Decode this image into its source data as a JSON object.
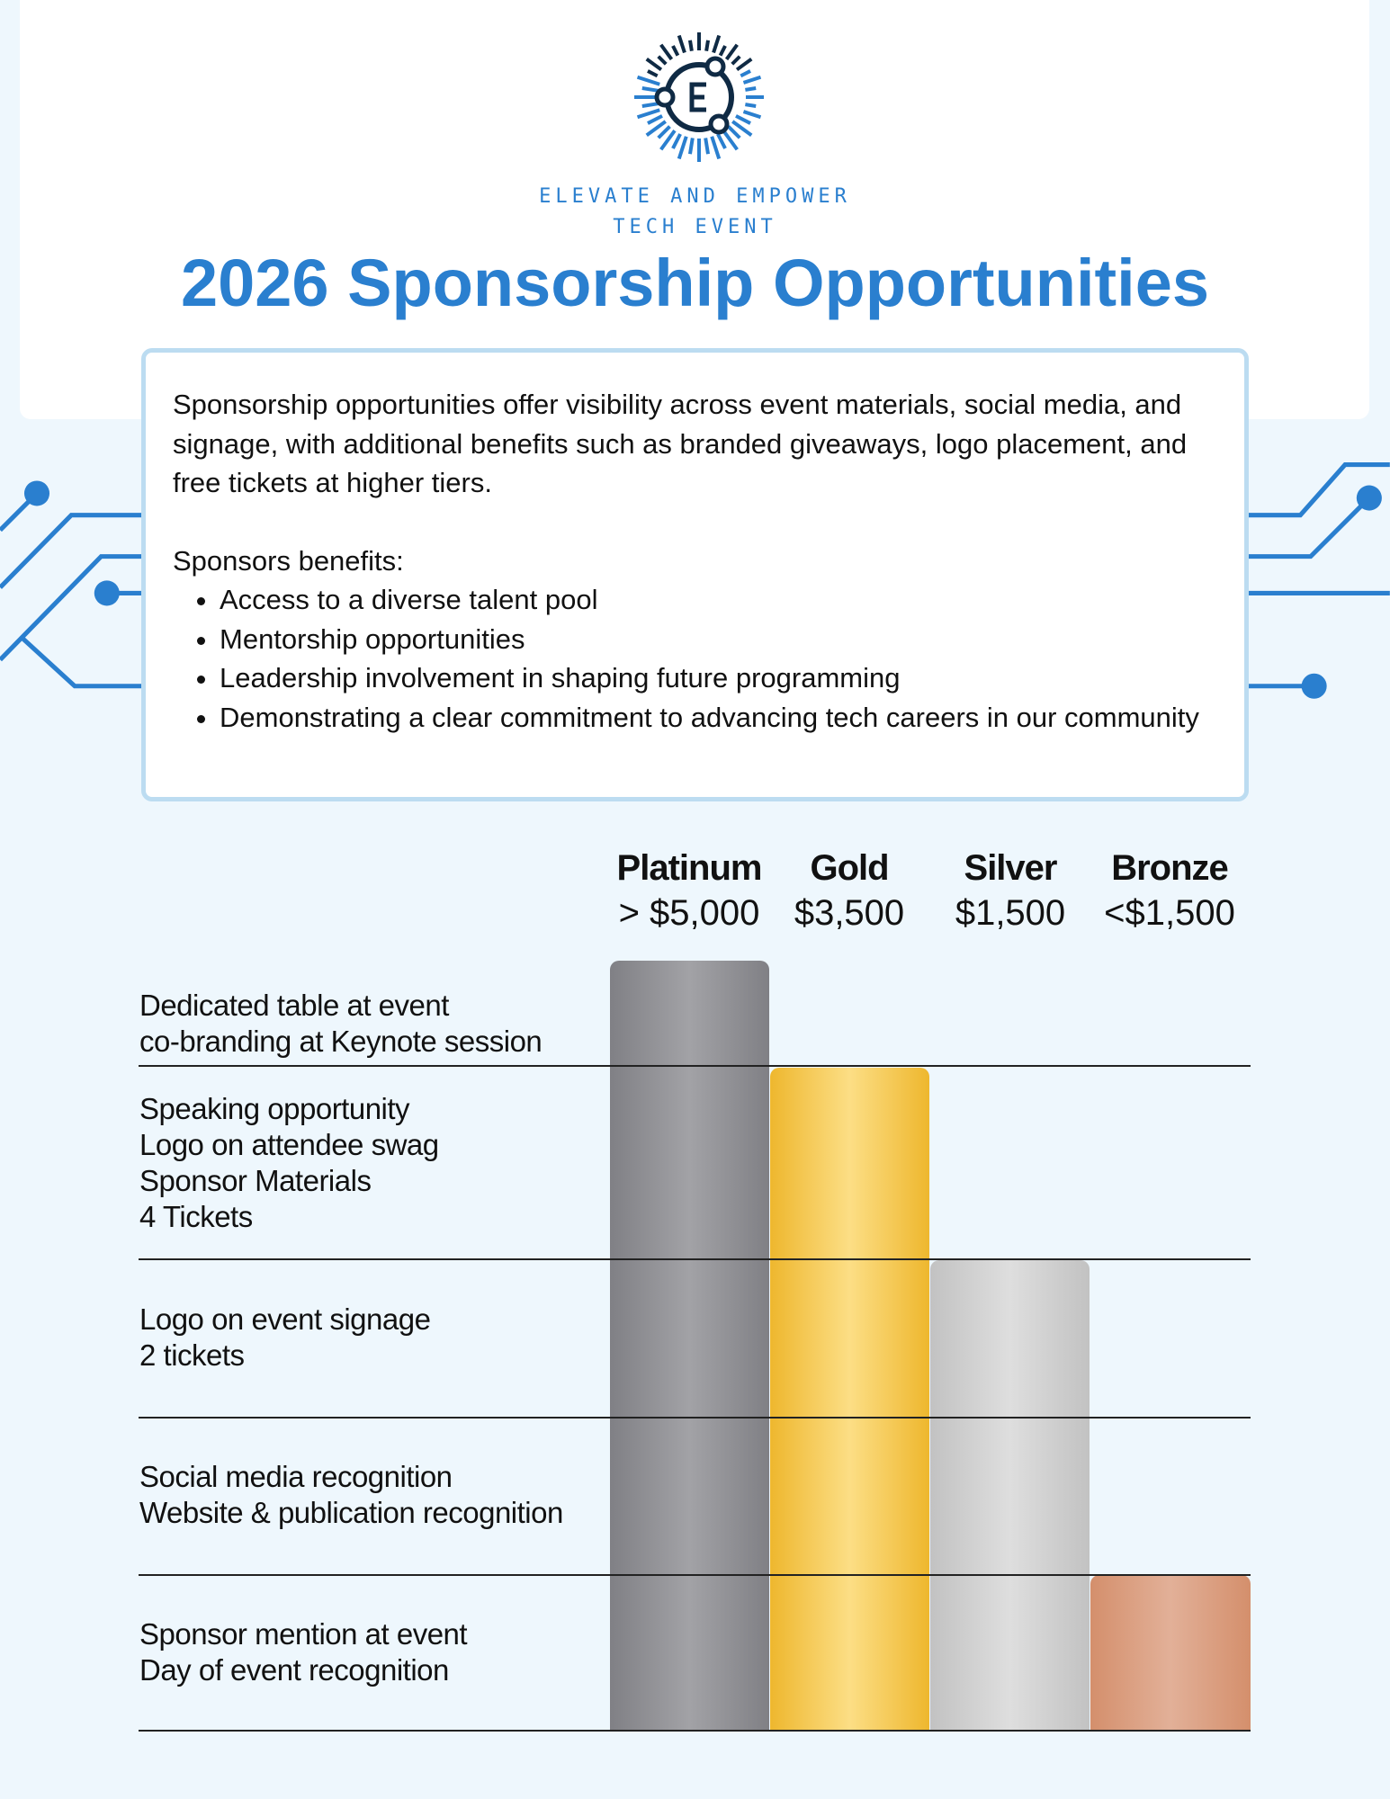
{
  "logo": {
    "icon": "circuit-e-logo",
    "line1": "ELEVATE AND EMPOWER",
    "line2": "TECH EVENT"
  },
  "title": "2026 Sponsorship Opportunities",
  "intro": {
    "paragraph": "Sponsorship opportunities offer visibility across event materials, social media, and signage, with additional benefits such as branded giveaways, logo placement, and free tickets at higher tiers.",
    "benefits_heading": "Sponsors benefits:",
    "benefits": [
      "Access to a diverse talent pool",
      "Mentorship opportunities",
      "Leadership involvement in shaping future programming",
      "Demonstrating a clear commitment to advancing tech careers in our community"
    ]
  },
  "tiers": [
    {
      "name": "Platinum",
      "price": "> $5,000",
      "color": "#8f8f94",
      "level": 5
    },
    {
      "name": "Gold",
      "price": "$3,500",
      "color": "#f5c94a",
      "level": 4
    },
    {
      "name": "Silver",
      "price": "$1,500",
      "color": "#d2d2d2",
      "level": 3
    },
    {
      "name": "Bronze",
      "price": "<$1,500",
      "color": "#daa182",
      "level": 1
    }
  ],
  "benefit_rows": [
    {
      "lines": [
        "Dedicated table at event",
        "co-branding at Keynote session"
      ]
    },
    {
      "lines": [
        "Speaking opportunity",
        "Logo on attendee swag",
        "Sponsor Materials",
        "4 Tickets"
      ]
    },
    {
      "lines": [
        "Logo on event signage",
        "2 tickets"
      ]
    },
    {
      "lines": [
        "Social media recognition",
        "Website & publication recognition"
      ]
    },
    {
      "lines": [
        "Sponsor mention at event",
        "Day of event recognition"
      ]
    }
  ],
  "colors": {
    "accent": "#2a7fcf",
    "background": "#eef7fd",
    "navy": "#0f2a44"
  }
}
